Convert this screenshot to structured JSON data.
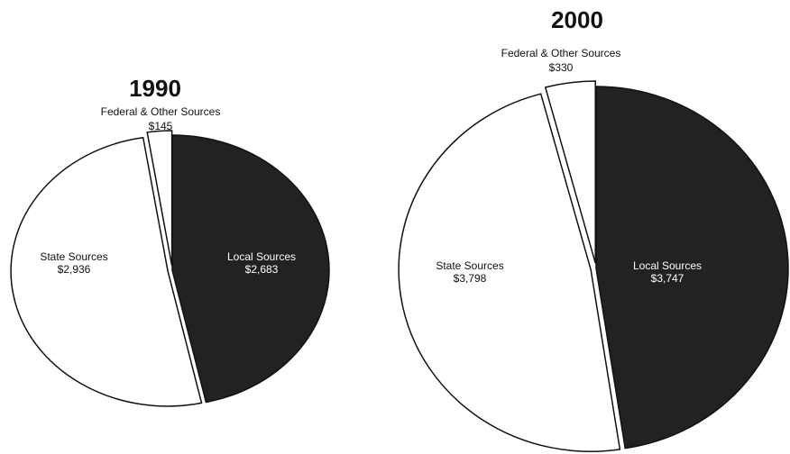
{
  "chart_data": [
    {
      "type": "pie",
      "title": "1990",
      "categories": [
        "Local Sources",
        "State Sources",
        "Federal & Other Sources"
      ],
      "values": [
        2683,
        2936,
        145
      ],
      "value_labels": [
        "$2,683",
        "$2,936",
        "$145"
      ],
      "colors": [
        "#222222",
        "#ffffff",
        "#ffffff"
      ]
    },
    {
      "type": "pie",
      "title": "2000",
      "categories": [
        "Local Sources",
        "State Sources",
        "Federal & Other Sources"
      ],
      "values": [
        3747,
        3798,
        330
      ],
      "value_labels": [
        "$3,747",
        "$3,798",
        "$330"
      ],
      "colors": [
        "#222222",
        "#ffffff",
        "#ffffff"
      ]
    }
  ]
}
